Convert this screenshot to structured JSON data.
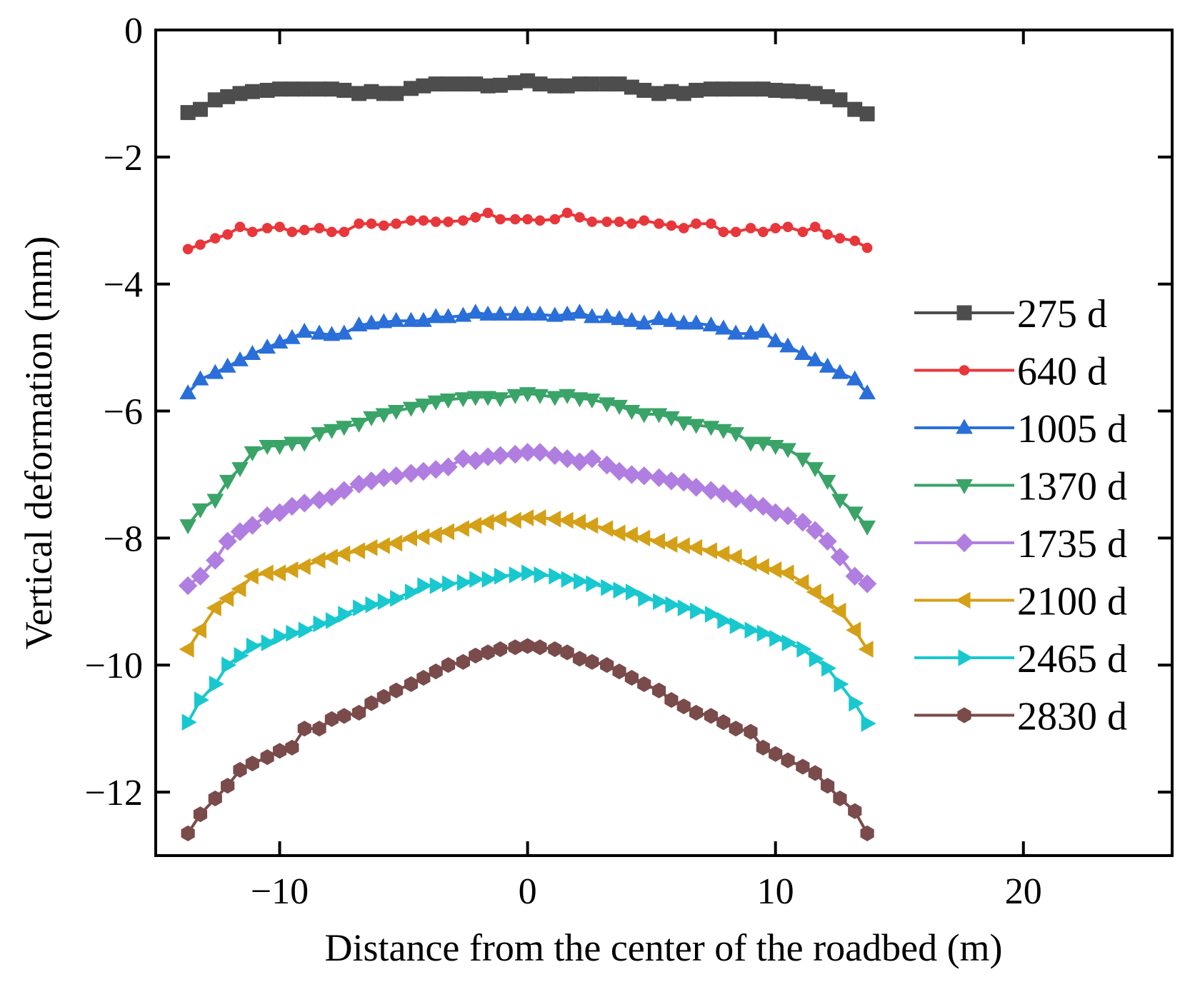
{
  "chart_data": {
    "type": "line",
    "title": "",
    "xlabel": "Distance from the center of the roadbed (m)",
    "ylabel": "Vertical deformation (mm)",
    "xlim": [
      -15,
      26
    ],
    "ylim": [
      -13,
      0
    ],
    "xticks": [
      -10,
      0,
      10,
      20
    ],
    "xtick_labels": [
      "−10",
      "0",
      "10",
      "20"
    ],
    "yticks": [
      0,
      -2,
      -4,
      -6,
      -8,
      -10,
      -12
    ],
    "ytick_labels": [
      "0",
      "−2",
      "−4",
      "−6",
      "−8",
      "−10",
      "−12"
    ],
    "legend_position": "right",
    "grid": false,
    "series": [
      {
        "name": "275 d",
        "color": "#4d4d4d",
        "marker": "square",
        "x": [
          -13.7,
          -13.2,
          -12.6,
          -12.1,
          -11.6,
          -11.1,
          -10.5,
          -10.0,
          -9.5,
          -9.0,
          -8.4,
          -7.9,
          -7.4,
          -6.8,
          -6.3,
          -5.8,
          -5.3,
          -4.7,
          -4.2,
          -3.7,
          -3.2,
          -2.6,
          -2.1,
          -1.6,
          -1.1,
          -0.5,
          0.0,
          0.5,
          1.1,
          1.6,
          2.1,
          2.6,
          3.2,
          3.7,
          4.2,
          4.7,
          5.3,
          5.8,
          6.3,
          6.8,
          7.4,
          7.9,
          8.4,
          9.0,
          9.5,
          10.0,
          10.5,
          11.1,
          11.6,
          12.1,
          12.6,
          13.2,
          13.7
        ],
        "y": [
          -1.3,
          -1.25,
          -1.1,
          -1.05,
          -1.0,
          -0.97,
          -0.95,
          -0.93,
          -0.93,
          -0.93,
          -0.93,
          -0.93,
          -0.95,
          -1.0,
          -0.97,
          -1.0,
          -1.0,
          -0.92,
          -0.88,
          -0.85,
          -0.85,
          -0.85,
          -0.85,
          -0.88,
          -0.87,
          -0.83,
          -0.8,
          -0.85,
          -0.88,
          -0.88,
          -0.85,
          -0.85,
          -0.85,
          -0.85,
          -0.9,
          -0.95,
          -1.0,
          -0.97,
          -1.0,
          -0.95,
          -0.93,
          -0.93,
          -0.93,
          -0.93,
          -0.93,
          -0.95,
          -0.96,
          -0.97,
          -1.0,
          -1.05,
          -1.1,
          -1.25,
          -1.32
        ]
      },
      {
        "name": "640 d",
        "color": "#e8373b",
        "marker": "circle",
        "x": [
          -13.7,
          -13.2,
          -12.6,
          -12.1,
          -11.6,
          -11.1,
          -10.5,
          -10.0,
          -9.5,
          -9.0,
          -8.4,
          -7.9,
          -7.4,
          -6.8,
          -6.3,
          -5.8,
          -5.3,
          -4.7,
          -4.2,
          -3.7,
          -3.2,
          -2.6,
          -2.1,
          -1.6,
          -1.1,
          -0.5,
          0.0,
          0.5,
          1.1,
          1.6,
          2.1,
          2.6,
          3.2,
          3.7,
          4.2,
          4.7,
          5.3,
          5.8,
          6.3,
          6.8,
          7.4,
          7.9,
          8.4,
          9.0,
          9.5,
          10.0,
          10.5,
          11.1,
          11.6,
          12.1,
          12.6,
          13.2,
          13.7
        ],
        "y": [
          -3.45,
          -3.38,
          -3.28,
          -3.22,
          -3.1,
          -3.18,
          -3.12,
          -3.1,
          -3.18,
          -3.15,
          -3.12,
          -3.18,
          -3.18,
          -3.05,
          -3.05,
          -3.08,
          -3.05,
          -3.0,
          -3.0,
          -3.02,
          -3.02,
          -3.0,
          -2.95,
          -2.88,
          -2.98,
          -2.98,
          -2.98,
          -3.0,
          -2.98,
          -2.88,
          -2.95,
          -3.02,
          -3.02,
          -3.02,
          -3.05,
          -3.0,
          -3.05,
          -3.08,
          -3.12,
          -3.05,
          -3.05,
          -3.18,
          -3.18,
          -3.12,
          -3.18,
          -3.12,
          -3.1,
          -3.18,
          -3.1,
          -3.22,
          -3.28,
          -3.32,
          -3.43
        ]
      },
      {
        "name": "1005 d",
        "color": "#2a6fd9",
        "marker": "triangle-up",
        "x": [
          -13.7,
          -13.2,
          -12.6,
          -12.1,
          -11.6,
          -11.1,
          -10.5,
          -10.0,
          -9.5,
          -9.0,
          -8.4,
          -7.9,
          -7.4,
          -6.8,
          -6.3,
          -5.8,
          -5.3,
          -4.7,
          -4.2,
          -3.7,
          -3.2,
          -2.6,
          -2.1,
          -1.6,
          -1.1,
          -0.5,
          0.0,
          0.5,
          1.1,
          1.6,
          2.1,
          2.6,
          3.2,
          3.7,
          4.2,
          4.7,
          5.3,
          5.8,
          6.3,
          6.8,
          7.4,
          7.9,
          8.4,
          9.0,
          9.5,
          10.0,
          10.5,
          11.1,
          11.6,
          12.1,
          12.6,
          13.2,
          13.7
        ],
        "y": [
          -5.72,
          -5.5,
          -5.4,
          -5.3,
          -5.2,
          -5.1,
          -5.0,
          -4.92,
          -4.85,
          -4.75,
          -4.78,
          -4.8,
          -4.78,
          -4.65,
          -4.62,
          -4.6,
          -4.58,
          -4.58,
          -4.58,
          -4.52,
          -4.52,
          -4.5,
          -4.45,
          -4.48,
          -4.48,
          -4.48,
          -4.48,
          -4.48,
          -4.5,
          -4.48,
          -4.45,
          -4.52,
          -4.52,
          -4.55,
          -4.58,
          -4.62,
          -4.55,
          -4.58,
          -4.62,
          -4.62,
          -4.65,
          -4.7,
          -4.78,
          -4.78,
          -4.75,
          -4.9,
          -4.98,
          -5.1,
          -5.2,
          -5.3,
          -5.4,
          -5.5,
          -5.72
        ]
      },
      {
        "name": "1370 d",
        "color": "#3aa468",
        "marker": "triangle-down",
        "x": [
          -13.7,
          -13.2,
          -12.6,
          -12.1,
          -11.6,
          -11.1,
          -10.5,
          -10.0,
          -9.5,
          -9.0,
          -8.4,
          -7.9,
          -7.4,
          -6.8,
          -6.3,
          -5.8,
          -5.3,
          -4.7,
          -4.2,
          -3.7,
          -3.2,
          -2.6,
          -2.1,
          -1.6,
          -1.1,
          -0.5,
          0.0,
          0.5,
          1.1,
          1.6,
          2.1,
          2.6,
          3.2,
          3.7,
          4.2,
          4.7,
          5.3,
          5.8,
          6.3,
          6.8,
          7.4,
          7.9,
          8.4,
          9.0,
          9.5,
          10.0,
          10.5,
          11.1,
          11.6,
          12.1,
          12.6,
          13.2,
          13.7
        ],
        "y": [
          -7.8,
          -7.55,
          -7.4,
          -7.1,
          -6.9,
          -6.65,
          -6.55,
          -6.55,
          -6.5,
          -6.5,
          -6.35,
          -6.3,
          -6.25,
          -6.2,
          -6.1,
          -6.05,
          -6.0,
          -5.95,
          -5.9,
          -5.85,
          -5.82,
          -5.8,
          -5.78,
          -5.78,
          -5.8,
          -5.75,
          -5.72,
          -5.75,
          -5.78,
          -5.75,
          -5.8,
          -5.82,
          -5.88,
          -5.92,
          -6.0,
          -6.05,
          -6.05,
          -6.1,
          -6.18,
          -6.22,
          -6.25,
          -6.3,
          -6.35,
          -6.5,
          -6.5,
          -6.55,
          -6.6,
          -6.75,
          -6.9,
          -7.1,
          -7.4,
          -7.6,
          -7.82
        ]
      },
      {
        "name": "1735 d",
        "color": "#b07ee0",
        "marker": "diamond",
        "x": [
          -13.7,
          -13.2,
          -12.6,
          -12.1,
          -11.6,
          -11.1,
          -10.5,
          -10.0,
          -9.5,
          -9.0,
          -8.4,
          -7.9,
          -7.4,
          -6.8,
          -6.3,
          -5.8,
          -5.3,
          -4.7,
          -4.2,
          -3.7,
          -3.2,
          -2.6,
          -2.1,
          -1.6,
          -1.1,
          -0.5,
          0.0,
          0.5,
          1.1,
          1.6,
          2.1,
          2.6,
          3.2,
          3.7,
          4.2,
          4.7,
          5.3,
          5.8,
          6.3,
          6.8,
          7.4,
          7.9,
          8.4,
          9.0,
          9.5,
          10.0,
          10.5,
          11.1,
          11.6,
          12.1,
          12.6,
          13.2,
          13.7
        ],
        "y": [
          -8.75,
          -8.6,
          -8.35,
          -8.05,
          -7.9,
          -7.8,
          -7.65,
          -7.6,
          -7.5,
          -7.45,
          -7.4,
          -7.35,
          -7.25,
          -7.15,
          -7.1,
          -7.05,
          -7.02,
          -6.98,
          -6.95,
          -6.92,
          -6.88,
          -6.75,
          -6.78,
          -6.72,
          -6.7,
          -6.68,
          -6.65,
          -6.65,
          -6.7,
          -6.75,
          -6.8,
          -6.75,
          -6.85,
          -6.95,
          -7.0,
          -7.02,
          -7.05,
          -7.1,
          -7.12,
          -7.2,
          -7.25,
          -7.3,
          -7.38,
          -7.45,
          -7.5,
          -7.6,
          -7.65,
          -7.75,
          -7.88,
          -8.05,
          -8.3,
          -8.6,
          -8.72
        ]
      },
      {
        "name": "2100 d",
        "color": "#d4a017",
        "marker": "triangle-left",
        "x": [
          -13.7,
          -13.2,
          -12.6,
          -12.1,
          -11.6,
          -11.1,
          -10.5,
          -10.0,
          -9.5,
          -9.0,
          -8.4,
          -7.9,
          -7.4,
          -6.8,
          -6.3,
          -5.8,
          -5.3,
          -4.7,
          -4.2,
          -3.7,
          -3.2,
          -2.6,
          -2.1,
          -1.6,
          -1.1,
          -0.5,
          0.0,
          0.5,
          1.1,
          1.6,
          2.1,
          2.6,
          3.2,
          3.7,
          4.2,
          4.7,
          5.3,
          5.8,
          6.3,
          6.8,
          7.4,
          7.9,
          8.4,
          9.0,
          9.5,
          10.0,
          10.5,
          11.1,
          11.6,
          12.1,
          12.6,
          13.2,
          13.7
        ],
        "y": [
          -9.75,
          -9.45,
          -9.1,
          -8.95,
          -8.8,
          -8.6,
          -8.55,
          -8.55,
          -8.5,
          -8.45,
          -8.35,
          -8.3,
          -8.25,
          -8.2,
          -8.15,
          -8.12,
          -8.08,
          -8.0,
          -7.98,
          -7.95,
          -7.9,
          -7.85,
          -7.8,
          -7.75,
          -7.7,
          -7.72,
          -7.68,
          -7.68,
          -7.7,
          -7.72,
          -7.75,
          -7.8,
          -7.85,
          -7.92,
          -7.95,
          -8.0,
          -8.05,
          -8.1,
          -8.12,
          -8.15,
          -8.2,
          -8.25,
          -8.3,
          -8.4,
          -8.45,
          -8.5,
          -8.55,
          -8.7,
          -8.85,
          -9.0,
          -9.15,
          -9.45,
          -9.75
        ]
      },
      {
        "name": "2465 d",
        "color": "#19c8cf",
        "marker": "triangle-right",
        "x": [
          -13.7,
          -13.2,
          -12.6,
          -12.1,
          -11.6,
          -11.1,
          -10.5,
          -10.0,
          -9.5,
          -9.0,
          -8.4,
          -7.9,
          -7.4,
          -6.8,
          -6.3,
          -5.8,
          -5.3,
          -4.7,
          -4.2,
          -3.7,
          -3.2,
          -2.6,
          -2.1,
          -1.6,
          -1.1,
          -0.5,
          0.0,
          0.5,
          1.1,
          1.6,
          2.1,
          2.6,
          3.2,
          3.7,
          4.2,
          4.7,
          5.3,
          5.8,
          6.3,
          6.8,
          7.4,
          7.9,
          8.4,
          9.0,
          9.5,
          10.0,
          10.5,
          11.1,
          11.6,
          12.1,
          12.6,
          13.2,
          13.7
        ],
        "y": [
          -10.9,
          -10.55,
          -10.3,
          -10.0,
          -9.85,
          -9.7,
          -9.65,
          -9.55,
          -9.5,
          -9.45,
          -9.35,
          -9.3,
          -9.2,
          -9.1,
          -9.05,
          -9.0,
          -8.95,
          -8.85,
          -8.75,
          -8.75,
          -8.72,
          -8.7,
          -8.65,
          -8.65,
          -8.6,
          -8.58,
          -8.55,
          -8.58,
          -8.6,
          -8.65,
          -8.68,
          -8.72,
          -8.78,
          -8.82,
          -8.85,
          -8.95,
          -9.0,
          -9.05,
          -9.1,
          -9.15,
          -9.2,
          -9.3,
          -9.38,
          -9.45,
          -9.5,
          -9.58,
          -9.65,
          -9.75,
          -9.9,
          -10.05,
          -10.3,
          -10.6,
          -10.92
        ]
      },
      {
        "name": "2830 d",
        "color": "#7a4b4b",
        "marker": "hexagon",
        "x": [
          -13.7,
          -13.2,
          -12.6,
          -12.1,
          -11.6,
          -11.1,
          -10.5,
          -10.0,
          -9.5,
          -9.0,
          -8.4,
          -7.9,
          -7.4,
          -6.8,
          -6.3,
          -5.8,
          -5.3,
          -4.7,
          -4.2,
          -3.7,
          -3.2,
          -2.6,
          -2.1,
          -1.6,
          -1.1,
          -0.5,
          0.0,
          0.5,
          1.1,
          1.6,
          2.1,
          2.6,
          3.2,
          3.7,
          4.2,
          4.7,
          5.3,
          5.8,
          6.3,
          6.8,
          7.4,
          7.9,
          8.4,
          9.0,
          9.5,
          10.0,
          10.5,
          11.1,
          11.6,
          12.1,
          12.6,
          13.2,
          13.7
        ],
        "y": [
          -12.65,
          -12.35,
          -12.1,
          -11.9,
          -11.65,
          -11.55,
          -11.45,
          -11.35,
          -11.3,
          -11.0,
          -11.0,
          -10.85,
          -10.8,
          -10.75,
          -10.6,
          -10.5,
          -10.4,
          -10.3,
          -10.2,
          -10.1,
          -10.0,
          -9.95,
          -9.85,
          -9.8,
          -9.75,
          -9.72,
          -9.7,
          -9.72,
          -9.75,
          -9.8,
          -9.9,
          -9.95,
          -10.0,
          -10.1,
          -10.2,
          -10.3,
          -10.4,
          -10.55,
          -10.65,
          -10.75,
          -10.8,
          -10.9,
          -11.0,
          -11.05,
          -11.3,
          -11.4,
          -11.5,
          -11.6,
          -11.7,
          -11.9,
          -12.1,
          -12.3,
          -12.65
        ]
      }
    ]
  }
}
